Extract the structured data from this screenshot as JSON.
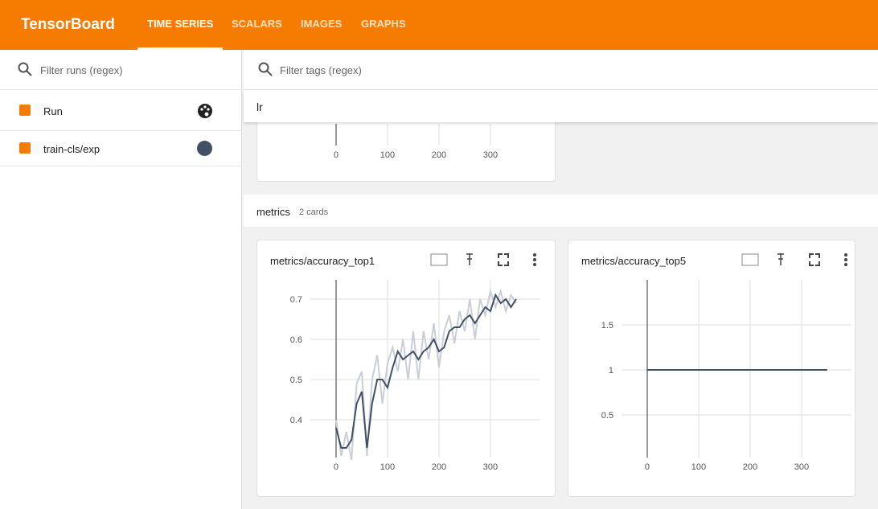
{
  "header": {
    "title": "TensorBoard",
    "tabs": [
      "TIME SERIES",
      "SCALARS",
      "IMAGES",
      "GRAPHS"
    ]
  },
  "sidebar": {
    "filter_placeholder": "Filter runs (regex)",
    "runs": [
      {
        "name": "Run"
      },
      {
        "name": "train-cls/exp",
        "color": "#425066"
      }
    ]
  },
  "main": {
    "filter_placeholder": "Filter tags (regex)",
    "groups": [
      {
        "name": "lr",
        "cards": [
          {
            "xlim": [
              -50,
              397
            ],
            "xticks": [
              0,
              100,
              200,
              300
            ]
          }
        ]
      },
      {
        "name": "metrics",
        "count_label": "2 cards",
        "cards": [
          {
            "title": "metrics/accuracy_top1",
            "xlim": [
              -50,
              397
            ],
            "ylim": [
              0.306,
              0.748
            ],
            "xticks": [
              0,
              100,
              200,
              300
            ],
            "yticks": [
              0.4,
              0.5,
              0.6,
              0.7
            ],
            "series": [
              {
                "color": "#c9ced8",
                "x": [
                  0,
                  10,
                  20,
                  30,
                  40,
                  50,
                  60,
                  70,
                  80,
                  90,
                  100,
                  110,
                  120,
                  130,
                  140,
                  150,
                  160,
                  170,
                  180,
                  190,
                  200,
                  210,
                  220,
                  230,
                  240,
                  250,
                  260,
                  270,
                  280,
                  290,
                  300,
                  310,
                  320,
                  330,
                  340,
                  350
                ],
                "values": [
                  0.4,
                  0.31,
                  0.37,
                  0.3,
                  0.49,
                  0.52,
                  0.31,
                  0.5,
                  0.56,
                  0.44,
                  0.54,
                  0.58,
                  0.52,
                  0.6,
                  0.5,
                  0.62,
                  0.5,
                  0.62,
                  0.55,
                  0.64,
                  0.53,
                  0.62,
                  0.66,
                  0.59,
                  0.67,
                  0.62,
                  0.7,
                  0.6,
                  0.7,
                  0.66,
                  0.72,
                  0.68,
                  0.72,
                  0.67,
                  0.71,
                  0.69
                ]
              },
              {
                "color": "#425066",
                "x": [
                  0,
                  10,
                  20,
                  30,
                  40,
                  50,
                  60,
                  70,
                  80,
                  90,
                  100,
                  110,
                  120,
                  130,
                  140,
                  150,
                  160,
                  170,
                  180,
                  190,
                  200,
                  210,
                  220,
                  230,
                  240,
                  250,
                  260,
                  270,
                  280,
                  290,
                  300,
                  310,
                  320,
                  330,
                  340,
                  350
                ],
                "values": [
                  0.38,
                  0.33,
                  0.33,
                  0.35,
                  0.44,
                  0.47,
                  0.33,
                  0.44,
                  0.5,
                  0.5,
                  0.48,
                  0.53,
                  0.57,
                  0.55,
                  0.56,
                  0.57,
                  0.55,
                  0.57,
                  0.58,
                  0.6,
                  0.57,
                  0.58,
                  0.62,
                  0.63,
                  0.63,
                  0.65,
                  0.66,
                  0.64,
                  0.66,
                  0.68,
                  0.67,
                  0.71,
                  0.69,
                  0.7,
                  0.68,
                  0.7
                ]
              }
            ]
          },
          {
            "title": "metrics/accuracy_top5",
            "xlim": [
              -50,
              397
            ],
            "ylim": [
              0.027,
              2
            ],
            "xticks": [
              0,
              100,
              200,
              300
            ],
            "yticks": [
              0.5,
              1,
              1.5
            ],
            "series": [
              {
                "color": "#425066",
                "x": [
                  0,
                  350
                ],
                "values": [
                  1,
                  1
                ]
              }
            ]
          }
        ]
      }
    ]
  }
}
